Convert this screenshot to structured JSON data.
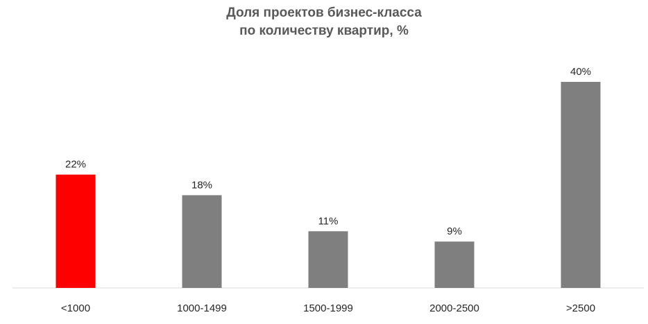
{
  "chart_data": {
    "type": "bar",
    "title_lines": [
      "Доля проектов бизнес-класса",
      "по количеству квартир, %"
    ],
    "categories": [
      "<1000",
      "1000-1499",
      "1500-1999",
      "2000-2500",
      ">2500"
    ],
    "values": [
      22,
      18,
      11,
      9,
      40
    ],
    "value_labels": [
      "22%",
      "18%",
      "11%",
      "9%",
      "40%"
    ],
    "ylim": [
      0,
      44
    ],
    "grid": false,
    "legend": "none",
    "colors": {
      "highlight": "#ff0000",
      "default": "#7f7f7f",
      "axis": "#d9d9d9"
    },
    "highlight_index": 0
  }
}
